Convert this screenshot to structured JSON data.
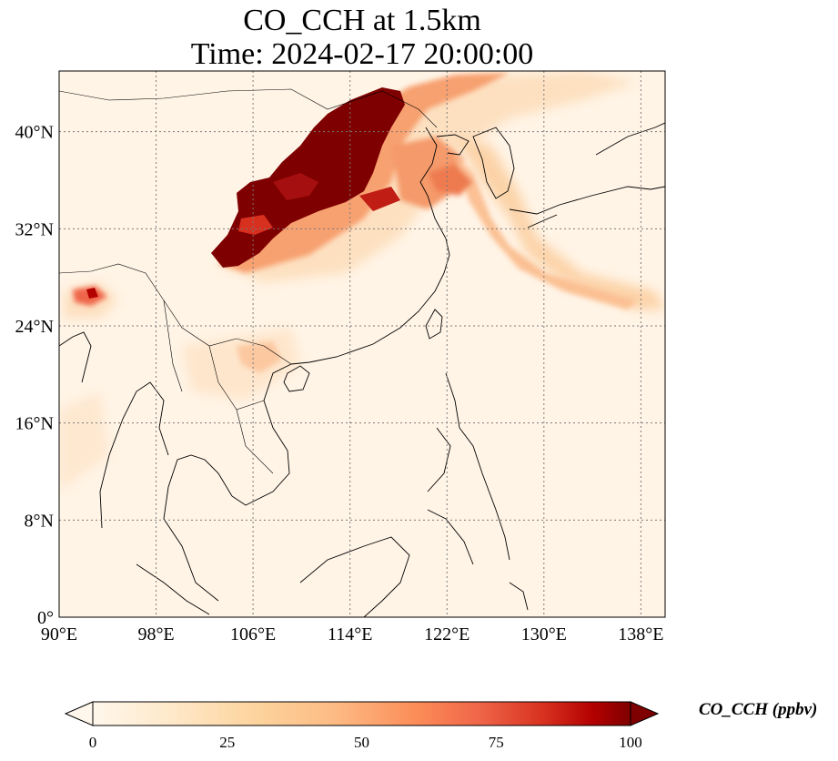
{
  "title": {
    "line1": "CO_CCH at 1.5km",
    "line2": "Time: 2024-02-17 20:00:00"
  },
  "map": {
    "projection": "PlateCarree",
    "lon_range": [
      90,
      140
    ],
    "lat_range": [
      0,
      45
    ],
    "gridlines": "dotted",
    "lon_ticks": [
      {
        "value": 90,
        "label": "90°E"
      },
      {
        "value": 98,
        "label": "98°E"
      },
      {
        "value": 106,
        "label": "106°E"
      },
      {
        "value": 114,
        "label": "114°E"
      },
      {
        "value": 122,
        "label": "122°E"
      },
      {
        "value": 130,
        "label": "130°E"
      },
      {
        "value": 138,
        "label": "138°E"
      }
    ],
    "lat_ticks": [
      {
        "value": 0,
        "label": "0°"
      },
      {
        "value": 8,
        "label": "8°N"
      },
      {
        "value": 16,
        "label": "16°N"
      },
      {
        "value": 24,
        "label": "24°N"
      },
      {
        "value": 32,
        "label": "32°N"
      },
      {
        "value": 40,
        "label": "40°N"
      }
    ]
  },
  "colorbar": {
    "colormap": "OrRd",
    "min": 0,
    "max": 100,
    "extend": "both",
    "ticks": [
      {
        "value": 0,
        "label": "0"
      },
      {
        "value": 25,
        "label": "25"
      },
      {
        "value": 50,
        "label": "50"
      },
      {
        "value": 75,
        "label": "75"
      },
      {
        "value": 100,
        "label": "100"
      }
    ],
    "label": "CO_CCH (ppbv)"
  },
  "colors": {
    "background_field": "#fff4e6",
    "low": "#fee8c8",
    "mid": "#fdbb84",
    "high": "#ef6548",
    "max": "#7f0000"
  }
}
